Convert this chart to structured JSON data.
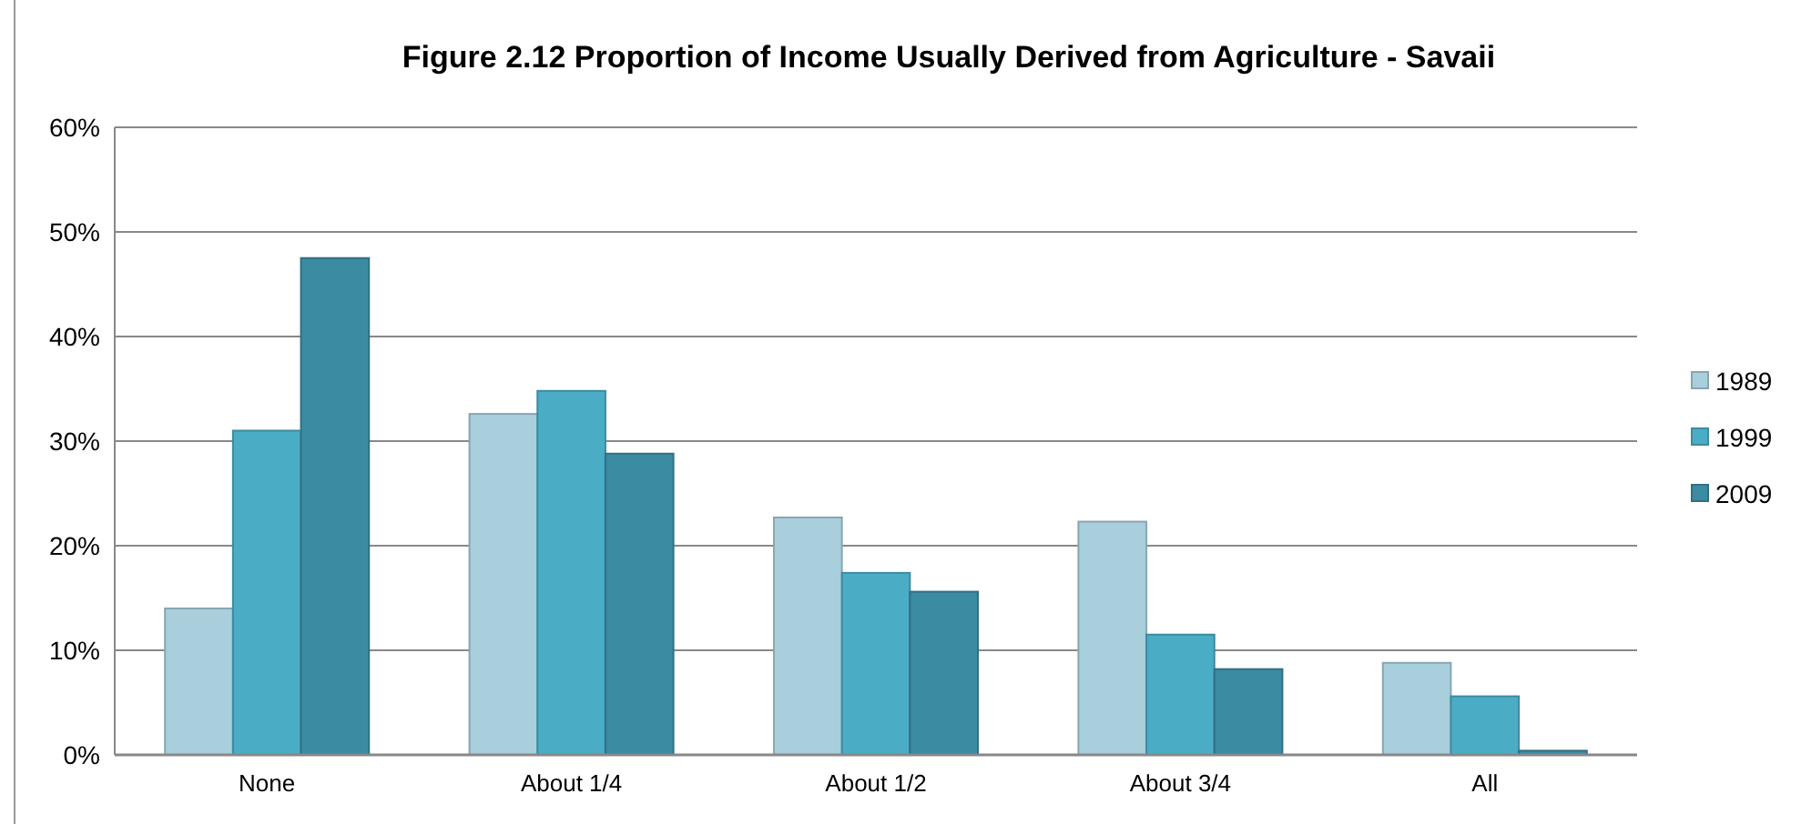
{
  "chart_data": {
    "type": "bar",
    "title": "Figure 2.12 Proportion of Income Usually Derived from Agriculture - Savaii",
    "categories": [
      "None",
      "About 1/4",
      "About 1/2",
      "About 3/4",
      "All"
    ],
    "series": [
      {
        "name": "1989",
        "color": "#a9cedc",
        "values": [
          14.0,
          32.6,
          22.7,
          22.3,
          8.8
        ]
      },
      {
        "name": "1999",
        "color": "#4bacc6",
        "values": [
          31.0,
          34.8,
          17.4,
          11.5,
          5.6
        ]
      },
      {
        "name": "2009",
        "color": "#3b8ba2",
        "values": [
          47.5,
          28.8,
          15.6,
          8.2,
          0.4
        ]
      }
    ],
    "ylim": [
      0,
      60
    ],
    "yticks": [
      {
        "value": 0,
        "label": "0%"
      },
      {
        "value": 10,
        "label": "10%"
      },
      {
        "value": 20,
        "label": "20%"
      },
      {
        "value": 30,
        "label": "30%"
      },
      {
        "value": 40,
        "label": "40%"
      },
      {
        "value": 50,
        "label": "50%"
      },
      {
        "value": 60,
        "label": "60%"
      }
    ],
    "grid": "y",
    "legend": "right"
  }
}
